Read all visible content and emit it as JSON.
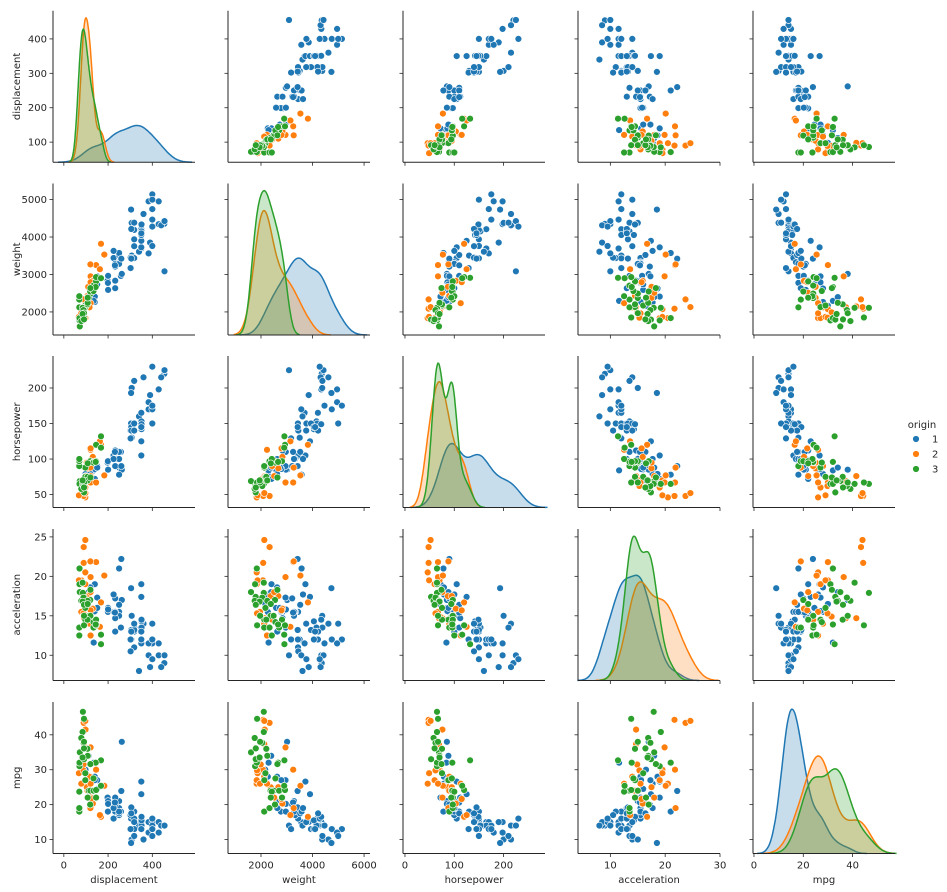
{
  "chart_data": {
    "type": "scatter-matrix",
    "diagonal": "kde",
    "variables": [
      "displacement",
      "weight",
      "horsepower",
      "acceleration",
      "mpg"
    ],
    "x_limits": {
      "displacement": [
        -49,
        593
      ],
      "weight": [
        720,
        6230
      ],
      "horsepower": [
        -4,
        284
      ],
      "acceleration": [
        4.1,
        30
      ],
      "mpg": [
        -0.4,
        57.2
      ]
    },
    "y_limits": {
      "displacement": [
        41.7,
        482
      ],
      "weight": [
        1384,
        5429
      ],
      "horsepower": [
        31.8,
        245
      ],
      "acceleration": [
        6.8,
        26
      ],
      "mpg": [
        6,
        49.4
      ]
    },
    "x_ticks": {
      "displacement": [
        "0",
        "200",
        "400"
      ],
      "weight": [
        "2000",
        "4000",
        "6000"
      ],
      "horsepower": [
        "0",
        "100",
        "200"
      ],
      "acceleration": [
        "10",
        "20",
        "30"
      ],
      "mpg": [
        "0",
        "20",
        "40"
      ]
    },
    "y_ticks": {
      "displacement": [
        "100",
        "200",
        "300",
        "400"
      ],
      "weight": [
        "2000",
        "3000",
        "4000",
        "5000"
      ],
      "horsepower": [
        "50",
        "100",
        "150",
        "200"
      ],
      "acceleration": [
        "10",
        "15",
        "20",
        "25"
      ],
      "mpg": [
        "10",
        "20",
        "30",
        "40"
      ]
    },
    "grid": false,
    "legend": {
      "title": "origin",
      "position": "right",
      "entries": [
        {
          "label": "1",
          "color": "#1f77b4"
        },
        {
          "label": "2",
          "color": "#ff7f0e"
        },
        {
          "label": "3",
          "color": "#2ca02c"
        }
      ]
    },
    "columns": [
      "displacement",
      "weight",
      "horsepower",
      "acceleration",
      "mpg",
      "origin"
    ],
    "rows": [
      [
        307,
        3504,
        130,
        12.0,
        18,
        1
      ],
      [
        350,
        3693,
        165,
        11.5,
        15,
        1
      ],
      [
        318,
        3436,
        150,
        11.0,
        18,
        1
      ],
      [
        304,
        3433,
        150,
        12.0,
        16,
        1
      ],
      [
        302,
        3449,
        140,
        10.5,
        17,
        1
      ],
      [
        429,
        4341,
        198,
        10.0,
        15,
        1
      ],
      [
        454,
        4354,
        220,
        9.0,
        14,
        1
      ],
      [
        440,
        4312,
        215,
        8.5,
        14,
        1
      ],
      [
        455,
        4425,
        225,
        10.0,
        14,
        1
      ],
      [
        390,
        3850,
        190,
        8.5,
        15,
        1
      ],
      [
        383,
        3563,
        170,
        10.0,
        15,
        1
      ],
      [
        340,
        3609,
        160,
        8.0,
        14,
        1
      ],
      [
        400,
        3761,
        150,
        9.5,
        15,
        1
      ],
      [
        455,
        3086,
        225,
        10.0,
        14,
        1
      ],
      [
        198,
        2833,
        95,
        15.5,
        22,
        1
      ],
      [
        199,
        2774,
        97,
        15.5,
        18,
        1
      ],
      [
        200,
        2587,
        85,
        16.0,
        21,
        1
      ],
      [
        360,
        4615,
        215,
        14.0,
        10,
        1
      ],
      [
        307,
        4376,
        200,
        15.0,
        10,
        1
      ],
      [
        318,
        4382,
        210,
        13.5,
        11,
        1
      ],
      [
        304,
        4732,
        193,
        18.5,
        9,
        1
      ],
      [
        140,
        2264,
        90,
        15.5,
        28,
        1
      ],
      [
        232,
        2634,
        100,
        13.0,
        19,
        1
      ],
      [
        225,
        3439,
        105,
        15.5,
        16,
        1
      ],
      [
        250,
        3329,
        100,
        15.5,
        17,
        1
      ],
      [
        250,
        3302,
        88,
        15.5,
        19,
        1
      ],
      [
        232,
        3288,
        100,
        15.5,
        18,
        1
      ],
      [
        350,
        4209,
        165,
        12.0,
        14,
        1
      ],
      [
        400,
        4464,
        175,
        11.5,
        14,
        1
      ],
      [
        351,
        4154,
        153,
        13.5,
        14,
        1
      ],
      [
        383,
        4955,
        180,
        11.5,
        12,
        1
      ],
      [
        400,
        4746,
        170,
        12.0,
        13,
        1
      ],
      [
        400,
        5140,
        175,
        12.0,
        13,
        1
      ],
      [
        258,
        2962,
        110,
        13.5,
        18,
        1
      ],
      [
        140,
        2408,
        72,
        19.0,
        22,
        1
      ],
      [
        250,
        3282,
        100,
        15.0,
        21,
        1
      ],
      [
        98,
        2255,
        79,
        17.7,
        26,
        1
      ],
      [
        262,
        3015,
        85,
        17.0,
        38,
        1
      ],
      [
        350,
        3725,
        105,
        19.0,
        26.6,
        1
      ],
      [
        350,
        3900,
        125,
        17.4,
        23,
        1
      ],
      [
        200,
        2965,
        85,
        15.8,
        20.2,
        1
      ],
      [
        250,
        3520,
        110,
        16.4,
        17.5,
        1
      ],
      [
        318,
        4190,
        150,
        13.0,
        16,
        1
      ],
      [
        351,
        4054,
        142,
        14.3,
        15.5,
        1
      ],
      [
        305,
        3425,
        145,
        13.2,
        19.2,
        1
      ],
      [
        151,
        2950,
        90,
        17.3,
        27,
        1
      ],
      [
        135,
        2295,
        84,
        11.6,
        32,
        1
      ],
      [
        112,
        2395,
        88,
        18.0,
        34,
        1
      ],
      [
        120,
        2625,
        79,
        18.6,
        28,
        1
      ],
      [
        140,
        2790,
        86,
        15.6,
        27,
        1
      ],
      [
        318,
        3940,
        150,
        13.2,
        13,
        1
      ],
      [
        429,
        4952,
        198,
        11.5,
        12,
        1
      ],
      [
        400,
        4997,
        150,
        14.0,
        11,
        1
      ],
      [
        350,
        4055,
        145,
        12.0,
        13,
        1
      ],
      [
        302,
        3169,
        129,
        12.0,
        13,
        1
      ],
      [
        400,
        4278,
        230,
        9.5,
        16,
        1
      ],
      [
        351,
        4335,
        149,
        14.5,
        16.5,
        1
      ],
      [
        305,
        4215,
        140,
        13.0,
        17.5,
        1
      ],
      [
        250,
        3574,
        78,
        21.0,
        18,
        1
      ],
      [
        232,
        3210,
        90,
        17.2,
        20,
        1
      ],
      [
        232,
        2835,
        112,
        14.7,
        22,
        1
      ],
      [
        225,
        3630,
        100,
        17.7,
        19,
        1
      ],
      [
        260,
        3420,
        90,
        22.2,
        23.9,
        1
      ],
      [
        231,
        3245,
        110,
        15.4,
        20.6,
        1
      ],
      [
        98,
        2164,
        70,
        16.5,
        30,
        1
      ],
      [
        318,
        3755,
        140,
        14.0,
        15,
        1
      ],
      [
        350,
        4100,
        145,
        13.0,
        13,
        1
      ],
      [
        151,
        2735,
        88,
        16.0,
        24.5,
        1
      ],
      [
        97,
        1835,
        46,
        20.5,
        26,
        2
      ],
      [
        110,
        2672,
        87,
        17.5,
        25,
        2
      ],
      [
        107,
        2430,
        90,
        14.5,
        24,
        2
      ],
      [
        104,
        2375,
        95,
        17.5,
        25,
        2
      ],
      [
        121,
        2234,
        113,
        12.5,
        26,
        2
      ],
      [
        116,
        2123,
        90,
        14.0,
        28,
        2
      ],
      [
        79,
        2074,
        70,
        19.5,
        30,
        2
      ],
      [
        97,
        1834,
        60,
        19.0,
        27,
        2
      ],
      [
        90,
        2085,
        48,
        21.7,
        44.3,
        2
      ],
      [
        90,
        2335,
        48,
        23.7,
        43.4,
        2
      ],
      [
        97,
        2130,
        52,
        24.6,
        44,
        2
      ],
      [
        98,
        2144,
        76,
        14.7,
        41.5,
        2
      ],
      [
        121,
        2950,
        67,
        19.9,
        36.4,
        2
      ],
      [
        146,
        3250,
        67,
        21.8,
        30,
        2
      ],
      [
        183,
        3530,
        77,
        20.1,
        25.4,
        2
      ],
      [
        168,
        3820,
        120,
        16.7,
        16.5,
        2
      ],
      [
        163,
        3140,
        125,
        13.6,
        17,
        2
      ],
      [
        131,
        2830,
        103,
        15.9,
        20.3,
        2
      ],
      [
        120,
        3270,
        88,
        21.9,
        19,
        2
      ],
      [
        68,
        1867,
        49,
        19.5,
        29,
        2
      ],
      [
        89,
        1990,
        71,
        14.9,
        31.5,
        2
      ],
      [
        121,
        2511,
        76,
        18.0,
        22,
        2
      ],
      [
        79,
        1963,
        67,
        15.5,
        26,
        2
      ],
      [
        121,
        2795,
        115,
        15.7,
        21.6,
        2
      ],
      [
        91,
        2130,
        69,
        14.7,
        37.3,
        2
      ],
      [
        89,
        1845,
        62,
        15.3,
        29.8,
        2
      ],
      [
        113,
        2372,
        95,
        15.0,
        24,
        3
      ],
      [
        97,
        2130,
        88,
        14.5,
        27,
        3
      ],
      [
        71,
        1773,
        65,
        19.0,
        31,
        3
      ],
      [
        72,
        1613,
        69,
        18.0,
        35,
        3
      ],
      [
        120,
        2489,
        97,
        15.0,
        24,
        3
      ],
      [
        70,
        2124,
        90,
        13.5,
        18,
        3
      ],
      [
        70,
        2330,
        97,
        13.5,
        19,
        3
      ],
      [
        119,
        2545,
        97,
        17.0,
        20,
        3
      ],
      [
        71,
        1836,
        65,
        21.0,
        32,
        3
      ],
      [
        91,
        1795,
        53,
        17.4,
        33,
        3
      ],
      [
        97,
        2171,
        75,
        16.0,
        29,
        3
      ],
      [
        134,
        2702,
        96,
        13.5,
        24,
        3
      ],
      [
        134,
        2560,
        95,
        14.2,
        27.5,
        3
      ],
      [
        146,
        2815,
        97,
        14.5,
        22,
        3
      ],
      [
        70,
        2420,
        100,
        12.5,
        23.7,
        3
      ],
      [
        86,
        2110,
        65,
        17.9,
        46.6,
        3
      ],
      [
        91,
        1850,
        67,
        13.8,
        44.6,
        3
      ],
      [
        85,
        2110,
        65,
        19.2,
        40.8,
        3
      ],
      [
        79,
        1755,
        58,
        16.9,
        39.1,
        3
      ],
      [
        89,
        2050,
        62,
        17.3,
        37.7,
        3
      ],
      [
        168,
        2910,
        132,
        11.4,
        32.7,
        3
      ],
      [
        146,
        2930,
        120,
        13.8,
        24.2,
        3
      ],
      [
        168,
        2900,
        116,
        12.6,
        25.4,
        3
      ],
      [
        107,
        2205,
        75,
        14.5,
        36,
        3
      ],
      [
        108,
        2245,
        70,
        16.9,
        34,
        3
      ],
      [
        91,
        1965,
        67,
        15.0,
        38,
        3
      ],
      [
        144,
        2665,
        96,
        13.9,
        32,
        3
      ],
      [
        120,
        2635,
        74,
        18.3,
        31.6,
        3
      ],
      [
        85,
        1945,
        70,
        16.8,
        33.5,
        3
      ],
      [
        91,
        1800,
        60,
        16.4,
        36.1,
        3
      ],
      [
        108,
        2379,
        94,
        16.5,
        22,
        3
      ]
    ]
  }
}
